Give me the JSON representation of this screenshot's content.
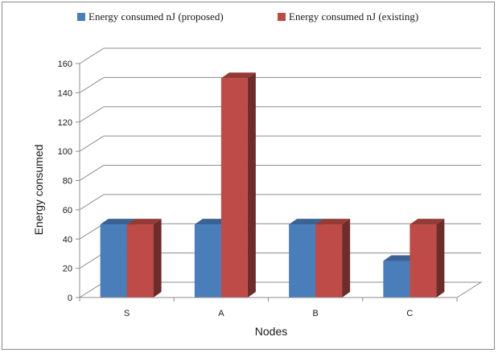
{
  "chart_data": {
    "type": "bar",
    "title": "",
    "xlabel": "Nodes",
    "ylabel": "Energy consumed",
    "categories": [
      "S",
      "A",
      "B",
      "C"
    ],
    "series": [
      {
        "name": "Energy consumed nJ (proposed)",
        "values": [
          50,
          50,
          50,
          25
        ],
        "color": "#4a7ebb"
      },
      {
        "name": "Energy consumed nJ (existing)",
        "values": [
          50,
          150,
          50,
          50
        ],
        "color": "#be4b48"
      }
    ],
    "ylim": [
      0,
      160
    ],
    "yticks": [
      0,
      20,
      40,
      60,
      80,
      100,
      120,
      140,
      160
    ],
    "grid": true,
    "legend_position": "top",
    "style": "3d-clustered-column"
  }
}
